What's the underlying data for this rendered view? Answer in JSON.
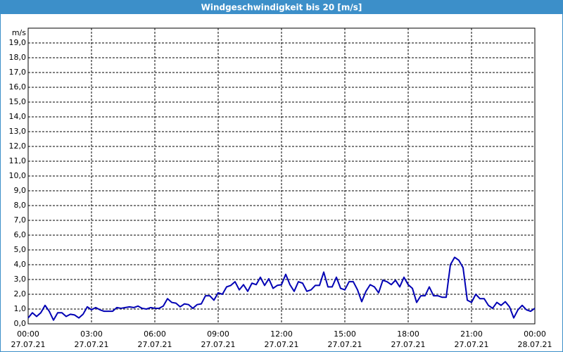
{
  "chart_data": {
    "type": "line",
    "title": "Windgeschwindigkeit bis 20 [m/s]",
    "y_label": "m/s",
    "x": [
      0,
      0.2,
      0.4,
      0.6,
      0.8,
      1,
      1.2,
      1.4,
      1.6,
      1.8,
      2,
      2.2,
      2.4,
      2.6,
      2.8,
      3,
      3.2,
      3.4,
      3.6,
      3.8,
      4,
      4.2,
      4.4,
      4.6,
      4.8,
      5,
      5.2,
      5.4,
      5.6,
      5.8,
      6,
      6.2,
      6.4,
      6.6,
      6.8,
      7,
      7.2,
      7.4,
      7.6,
      7.8,
      8,
      8.2,
      8.4,
      8.6,
      8.8,
      9,
      9.2,
      9.4,
      9.6,
      9.8,
      10,
      10.2,
      10.4,
      10.6,
      10.8,
      11,
      11.2,
      11.4,
      11.6,
      11.8,
      12,
      12.2,
      12.4,
      12.6,
      12.8,
      13,
      13.2,
      13.4,
      13.6,
      13.8,
      14,
      14.2,
      14.4,
      14.6,
      14.8,
      15,
      15.2,
      15.4,
      15.6,
      15.8,
      16,
      16.2,
      16.4,
      16.6,
      16.8,
      17,
      17.2,
      17.4,
      17.6,
      17.8,
      18,
      18.2,
      18.4,
      18.6,
      18.8,
      19,
      19.2,
      19.4,
      19.6,
      19.8,
      20,
      20.2,
      20.4,
      20.6,
      20.8,
      21,
      21.2,
      21.4,
      21.6,
      21.8,
      22,
      22.2,
      22.4,
      22.6,
      22.8,
      23,
      23.2,
      23.4,
      23.6,
      23.8,
      24
    ],
    "series": [
      {
        "name": "Windgeschwindigkeit",
        "color": "#0000b4",
        "values": [
          0.4,
          0.75,
          0.5,
          0.75,
          1.25,
          0.85,
          0.25,
          0.75,
          0.75,
          0.5,
          0.65,
          0.6,
          0.4,
          0.65,
          1.15,
          0.95,
          1.1,
          0.95,
          0.85,
          0.85,
          0.85,
          1.1,
          1.05,
          1.1,
          1.15,
          1.1,
          1.2,
          1.05,
          1.0,
          1.1,
          1.05,
          1.05,
          1.2,
          1.7,
          1.45,
          1.4,
          1.15,
          1.35,
          1.3,
          1.05,
          1.3,
          1.35,
          1.9,
          1.9,
          1.6,
          2.1,
          2.0,
          2.5,
          2.6,
          2.85,
          2.3,
          2.65,
          2.2,
          2.75,
          2.65,
          3.15,
          2.6,
          3.05,
          2.4,
          2.6,
          2.65,
          3.35,
          2.65,
          2.2,
          2.85,
          2.75,
          2.2,
          2.3,
          2.6,
          2.6,
          3.5,
          2.5,
          2.5,
          3.15,
          2.4,
          2.3,
          2.85,
          2.85,
          2.3,
          1.5,
          2.2,
          2.65,
          2.5,
          2.1,
          2.95,
          2.85,
          2.65,
          2.95,
          2.5,
          3.15,
          2.65,
          2.4,
          1.45,
          1.9,
          1.9,
          2.5,
          1.9,
          1.9,
          1.8,
          1.8,
          4.0,
          4.5,
          4.3,
          3.8,
          1.6,
          1.45,
          2.0,
          1.7,
          1.7,
          1.25,
          1.05,
          1.45,
          1.25,
          1.5,
          1.15,
          0.4,
          0.95,
          1.25,
          0.95,
          0.85,
          1.05
        ]
      }
    ],
    "xlim": [
      0,
      24
    ],
    "xticks": [
      {
        "value": 0,
        "label": "00:00",
        "date": "27.07.21"
      },
      {
        "value": 3,
        "label": "03:00",
        "date": "27.07.21"
      },
      {
        "value": 6,
        "label": "06:00",
        "date": "27.07.21"
      },
      {
        "value": 9,
        "label": "09:00",
        "date": "27.07.21"
      },
      {
        "value": 12,
        "label": "12:00",
        "date": "27.07.21"
      },
      {
        "value": 15,
        "label": "15:00",
        "date": "27.07.21"
      },
      {
        "value": 18,
        "label": "18:00",
        "date": "27.07.21"
      },
      {
        "value": 21,
        "label": "21:00",
        "date": "27.07.21"
      },
      {
        "value": 24,
        "label": "00:00",
        "date": "28.07.21"
      }
    ],
    "ylim": [
      0,
      20
    ],
    "yticks": [
      {
        "value": 0,
        "label": "0,0"
      },
      {
        "value": 1,
        "label": "1,0"
      },
      {
        "value": 2,
        "label": "2,0"
      },
      {
        "value": 3,
        "label": "3,0"
      },
      {
        "value": 4,
        "label": "4,0"
      },
      {
        "value": 5,
        "label": "5,0"
      },
      {
        "value": 6,
        "label": "6,0"
      },
      {
        "value": 7,
        "label": "7,0"
      },
      {
        "value": 8,
        "label": "8,0"
      },
      {
        "value": 9,
        "label": "9,0"
      },
      {
        "value": 10,
        "label": "10,0"
      },
      {
        "value": 11,
        "label": "11,0"
      },
      {
        "value": 12,
        "label": "12,0"
      },
      {
        "value": 13,
        "label": "13,0"
      },
      {
        "value": 14,
        "label": "14,0"
      },
      {
        "value": 15,
        "label": "15,0"
      },
      {
        "value": 16,
        "label": "16,0"
      },
      {
        "value": 17,
        "label": "17,0"
      },
      {
        "value": 18,
        "label": "18,0"
      },
      {
        "value": 19,
        "label": "19,0"
      }
    ],
    "grid": true
  }
}
